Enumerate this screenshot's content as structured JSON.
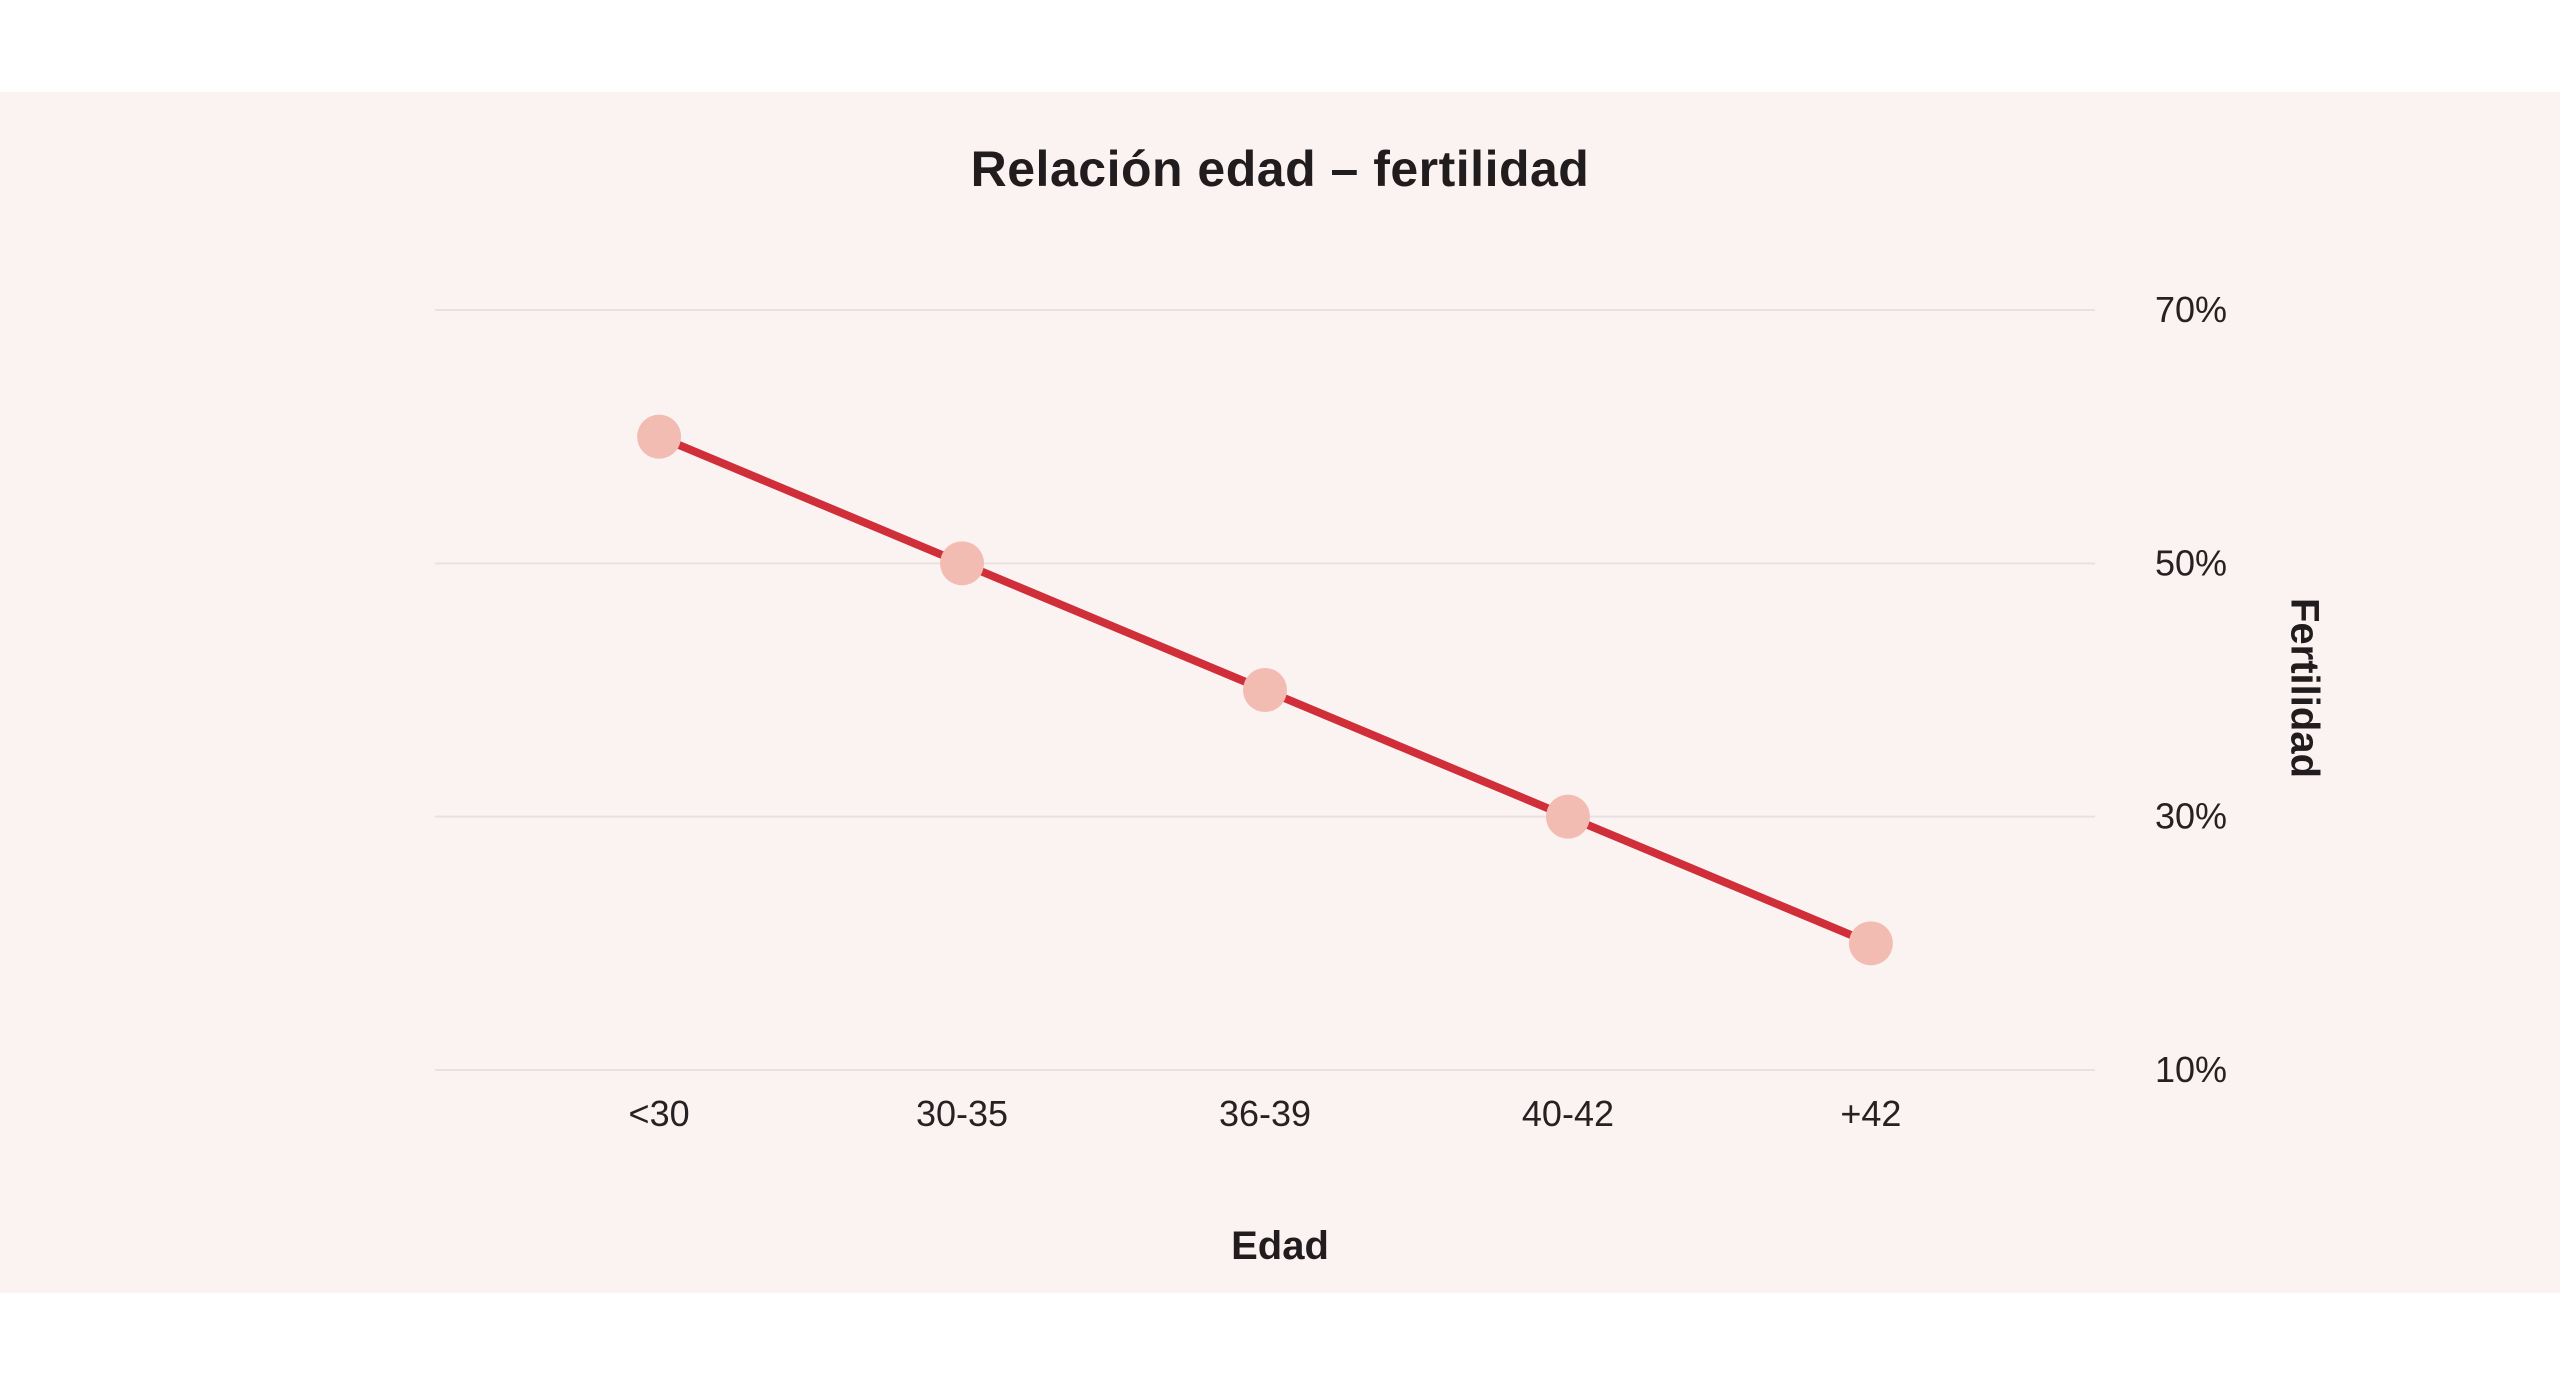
{
  "chart_data": {
    "type": "line",
    "title": "Relación edad – fertilidad",
    "xlabel": "Edad",
    "ylabel": "Fertilidad",
    "categories": [
      "<30",
      "30-35",
      "36-39",
      "40-42",
      "+42"
    ],
    "series": [
      {
        "name": "Fertilidad",
        "values": [
          60,
          50,
          40,
          30,
          20
        ]
      }
    ],
    "yticks": [
      70,
      50,
      30,
      10
    ],
    "ytick_labels": [
      "70%",
      "50%",
      "30%",
      "10%"
    ],
    "ylim": [
      10,
      70
    ],
    "grid": "horizontal-only",
    "legend_position": "none",
    "colors": {
      "line": "#d02f3a",
      "point": "#f2bcb3",
      "gridline": "#e8e1e0",
      "panel_background": "#fbf3f2",
      "page_background": "#ffffff",
      "text": "#211c1d"
    }
  }
}
